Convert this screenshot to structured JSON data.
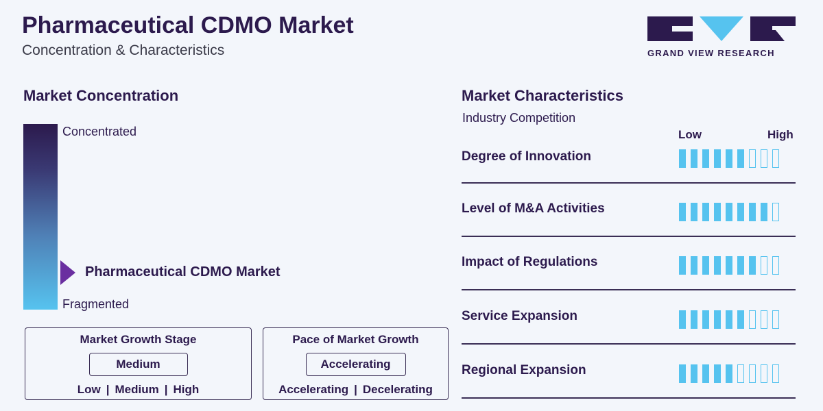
{
  "header": {
    "title": "Pharmaceutical CDMO Market",
    "subtitle": "Concentration & Characteristics",
    "logo_text": "GRAND VIEW RESEARCH"
  },
  "concentration": {
    "title": "Market Concentration",
    "top_label": "Concentrated",
    "bottom_label": "Fragmented",
    "marker_label": "Pharmaceutical CDMO Market",
    "marker_level": 0.2
  },
  "growth_stage": {
    "title": "Market Growth Stage",
    "value": "Medium",
    "options": [
      "Low",
      "Medium",
      "High"
    ]
  },
  "pace": {
    "title": "Pace of Market Growth",
    "value": "Accelerating",
    "options": [
      "Accelerating",
      "Decelerating"
    ]
  },
  "characteristics": {
    "title": "Market Characteristics",
    "subtitle": "Industry Competition",
    "scale_low": "Low",
    "scale_high": "High",
    "total_ticks": 9,
    "items": [
      {
        "label": "Degree of Innovation",
        "filled": 6
      },
      {
        "label": "Level of M&A Activities",
        "filled": 8
      },
      {
        "label": "Impact of Regulations",
        "filled": 7
      },
      {
        "label": "Service Expansion",
        "filled": 6
      },
      {
        "label": "Regional Expansion",
        "filled": 5
      }
    ]
  },
  "colors": {
    "dark_purple": "#2c1a4d",
    "accent_cyan": "#56c3ef",
    "marker_purple": "#6a2fa0"
  }
}
